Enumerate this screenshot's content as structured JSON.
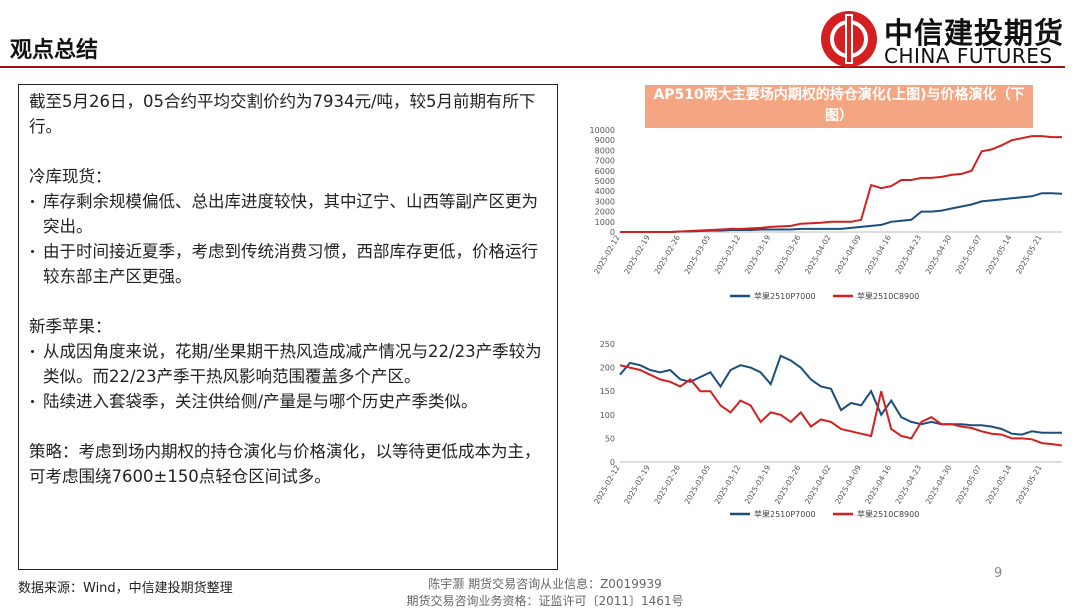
{
  "header": {
    "title": "观点总结",
    "logo_cn": "中信建投期货",
    "logo_en": "CHINA FUTURES"
  },
  "text_box": {
    "intro": "截至5月26日，05合约平均交割价约为7934元/吨，较5月前期有所下行。",
    "sections": [
      {
        "heading": "冷库现货：",
        "bullets": [
          "库存剩余规模偏低、总出库进度较快，其中辽宁、山西等副产区更为突出。",
          "由于时间接近夏季，考虑到传统消费习惯，西部库存更低，价格运行较东部主产区更强。"
        ]
      },
      {
        "heading": "新季苹果：",
        "bullets": [
          "从成因角度来说，花期/坐果期干热风造成减产情况与22/23产季较为类似。而22/23产季干热风影响范围覆盖多个产区。",
          "陆续进入套袋季，关注供给侧/产量是与哪个历史产季类似。"
        ]
      }
    ],
    "strategy": "策略：考虑到场内期权的持仓演化与价格演化，以等待更低成本为主，可考虑围绕7600±150点轻仓区间试多。"
  },
  "chart_title": "AP510两大主要场内期权的持仓演化(上图)与价格演化（下图）",
  "chart_data": [
    {
      "type": "line",
      "categories": [
        "2025-02-12",
        null,
        null,
        "2025-02-19",
        null,
        null,
        "2025-02-26",
        null,
        null,
        "2025-03-05",
        null,
        null,
        "2025-03-12",
        null,
        null,
        "2025-03-19",
        null,
        null,
        "2025-03-26",
        null,
        null,
        "2025-04-02",
        null,
        null,
        "2025-04-09",
        null,
        null,
        "2025-04-16",
        null,
        null,
        "2025-04-23",
        null,
        null,
        "2025-04-30",
        null,
        null,
        "2025-05-07",
        null,
        null,
        "2025-05-14",
        null,
        null,
        "2025-05-21",
        null,
        null
      ],
      "series": [
        {
          "name": "苹果2510P7000",
          "color": "#1c4f7c",
          "values": [
            0,
            0,
            0,
            0,
            0,
            0,
            50,
            50,
            100,
            150,
            150,
            200,
            200,
            200,
            250,
            250,
            250,
            250,
            300,
            300,
            300,
            300,
            300,
            400,
            500,
            600,
            700,
            1000,
            1100,
            1200,
            2000,
            2000,
            2100,
            2300,
            2500,
            2700,
            3000,
            3100,
            3200,
            3300,
            3400,
            3500,
            3800,
            3800,
            3750
          ]
        },
        {
          "name": "苹果2510C8900",
          "color": "#d42020",
          "values": [
            0,
            0,
            0,
            0,
            0,
            0,
            50,
            100,
            150,
            200,
            250,
            300,
            300,
            350,
            400,
            500,
            550,
            600,
            800,
            850,
            900,
            1000,
            1000,
            1000,
            1200,
            4600,
            4300,
            4500,
            5100,
            5100,
            5300,
            5300,
            5400,
            5600,
            5700,
            6000,
            7900,
            8100,
            8500,
            9000,
            9200,
            9400,
            9400,
            9300,
            9300
          ]
        }
      ],
      "ylim": [
        0,
        10000
      ],
      "yticks": [
        0,
        1000,
        2000,
        3000,
        4000,
        5000,
        6000,
        7000,
        8000,
        9000,
        10000
      ],
      "grid": false,
      "legend": "bottom"
    },
    {
      "type": "line",
      "categories": [
        "2025-02-12",
        null,
        null,
        "2025-02-19",
        null,
        null,
        "2025-02-26",
        null,
        null,
        "2025-03-05",
        null,
        null,
        "2025-03-12",
        null,
        null,
        "2025-03-19",
        null,
        null,
        "2025-03-26",
        null,
        null,
        "2025-04-02",
        null,
        null,
        "2025-04-09",
        null,
        null,
        "2025-04-16",
        null,
        null,
        "2025-04-23",
        null,
        null,
        "2025-04-30",
        null,
        null,
        "2025-05-07",
        null,
        null,
        "2025-05-14",
        null,
        null,
        "2025-05-21",
        null,
        null
      ],
      "series": [
        {
          "name": "苹果2510P7000",
          "color": "#1c4f7c",
          "values": [
            185,
            210,
            205,
            195,
            190,
            195,
            175,
            170,
            180,
            190,
            160,
            195,
            205,
            200,
            190,
            165,
            225,
            215,
            200,
            175,
            160,
            155,
            110,
            125,
            120,
            150,
            100,
            130,
            95,
            85,
            80,
            85,
            80,
            80,
            80,
            78,
            78,
            75,
            70,
            60,
            58,
            65,
            62,
            62,
            62
          ]
        },
        {
          "name": "苹果2510C8900",
          "color": "#d42020",
          "values": [
            205,
            200,
            195,
            185,
            175,
            170,
            160,
            175,
            150,
            150,
            120,
            105,
            130,
            120,
            85,
            105,
            100,
            85,
            105,
            75,
            90,
            85,
            70,
            65,
            60,
            55,
            150,
            70,
            55,
            50,
            85,
            95,
            80,
            80,
            75,
            72,
            65,
            60,
            58,
            50,
            50,
            48,
            40,
            38,
            35
          ]
        }
      ],
      "ylim": [
        0,
        250
      ],
      "yticks": [
        0,
        50,
        100,
        150,
        200,
        250
      ],
      "grid": false,
      "legend": "bottom"
    }
  ],
  "footer": {
    "source": "数据来源：Wind，中信建投期货整理",
    "analyst": "陈宇灏 期货交易咨询从业信息：Z0019939",
    "license": "期货交易咨询业务资格：证监许可〔2011〕1461号",
    "page": "9"
  }
}
